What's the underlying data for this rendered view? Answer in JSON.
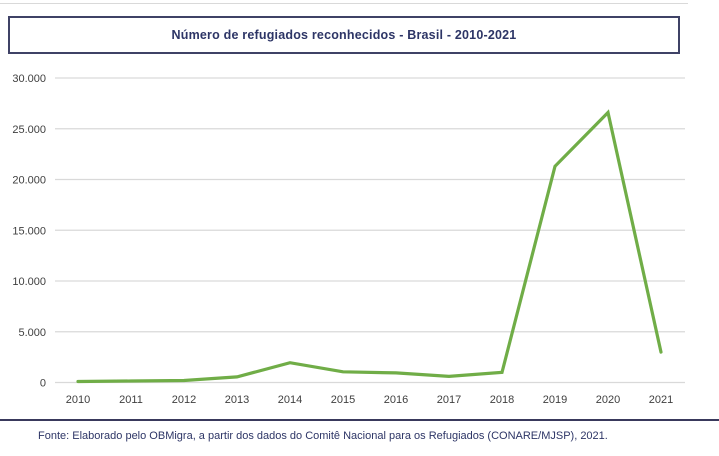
{
  "header": {
    "title": "Número de refugiados reconhecidos - Brasil - 2010-2021"
  },
  "footer": {
    "source": "Fonte: Elaborado pelo OBMigra, a partir dos dados do Comitê Nacional para os Refugiados (CONARE/MJSP), 2021."
  },
  "chart_data": {
    "type": "line",
    "title": "Número de refugiados reconhecidos - Brasil - 2010-2021",
    "categories": [
      "2010",
      "2011",
      "2012",
      "2013",
      "2014",
      "2015",
      "2016",
      "2017",
      "2018",
      "2019",
      "2020",
      "2021"
    ],
    "series": [
      {
        "name": "Número de refugiados reconhecidos",
        "values": [
          100,
          150,
          200,
          550,
          1950,
          1050,
          950,
          600,
          1000,
          21300,
          26600,
          3000
        ]
      }
    ],
    "xlabel": "",
    "ylabel": "",
    "ylim": [
      0,
      30000
    ],
    "y_ticks": [
      {
        "value": 30000,
        "label": "30.000"
      },
      {
        "value": 25000,
        "label": "25.000"
      },
      {
        "value": 20000,
        "label": "20.000"
      },
      {
        "value": 15000,
        "label": "15.000"
      },
      {
        "value": 10000,
        "label": "10.000"
      },
      {
        "value": 5000,
        "label": "5.000"
      },
      {
        "value": 0,
        "label": "0"
      }
    ],
    "grid": "horizontal",
    "legend_position": "none",
    "colors": {
      "line": "#70AD47",
      "gridline": "#d9d9d9",
      "tick_label": "#404040",
      "title_text": "#2d3566",
      "title_border": "#3f4266",
      "footer_text": "#2d3566",
      "footer_rule": "#39395c"
    }
  }
}
